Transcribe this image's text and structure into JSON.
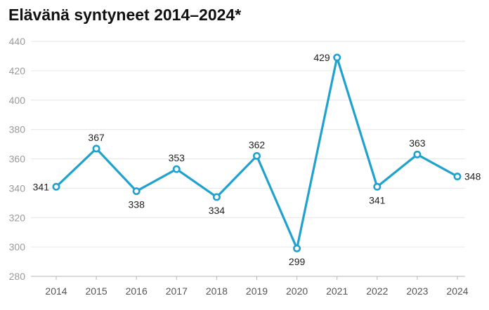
{
  "chart_data": {
    "type": "line",
    "title": "Elävänä syntyneet 2014–2024*",
    "xlabel": "",
    "ylabel": "",
    "categories": [
      "2014",
      "2015",
      "2016",
      "2017",
      "2018",
      "2019",
      "2020",
      "2021",
      "2022",
      "2023",
      "2024"
    ],
    "series": [
      {
        "values": [
          341,
          367,
          338,
          353,
          334,
          362,
          299,
          429,
          341,
          363,
          348
        ],
        "color": "#1fa2cf"
      }
    ],
    "data_labels": [
      "341",
      "367",
      "338",
      "353",
      "334",
      "362",
      "299",
      "429",
      "341",
      "363",
      "348"
    ],
    "label_positions": [
      "left",
      "above",
      "below",
      "above",
      "below",
      "above",
      "below",
      "left",
      "below",
      "above",
      "right"
    ],
    "ylim": [
      280,
      440
    ],
    "yticks": [
      280,
      300,
      320,
      340,
      360,
      380,
      400,
      420,
      440
    ],
    "grid": true,
    "legend": "none"
  }
}
